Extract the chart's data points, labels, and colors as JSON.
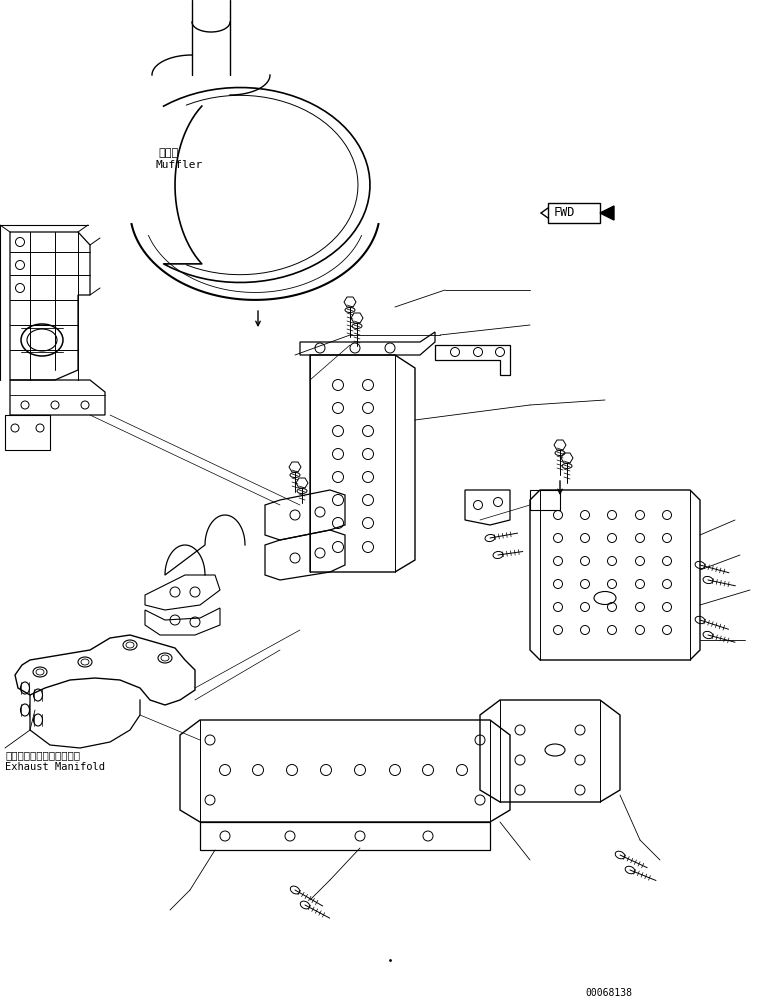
{
  "background_color": "#ffffff",
  "line_color": "#000000",
  "labels": {
    "muffler_jp": "マフラ",
    "muffler_en": "Muffler",
    "exhaust_jp": "エキゾーストマニホールド",
    "exhaust_en": "Exhaust Manifold",
    "fwd": "FWD",
    "part_number": "00068138"
  },
  "fig_width": 7.6,
  "fig_height": 10.02
}
